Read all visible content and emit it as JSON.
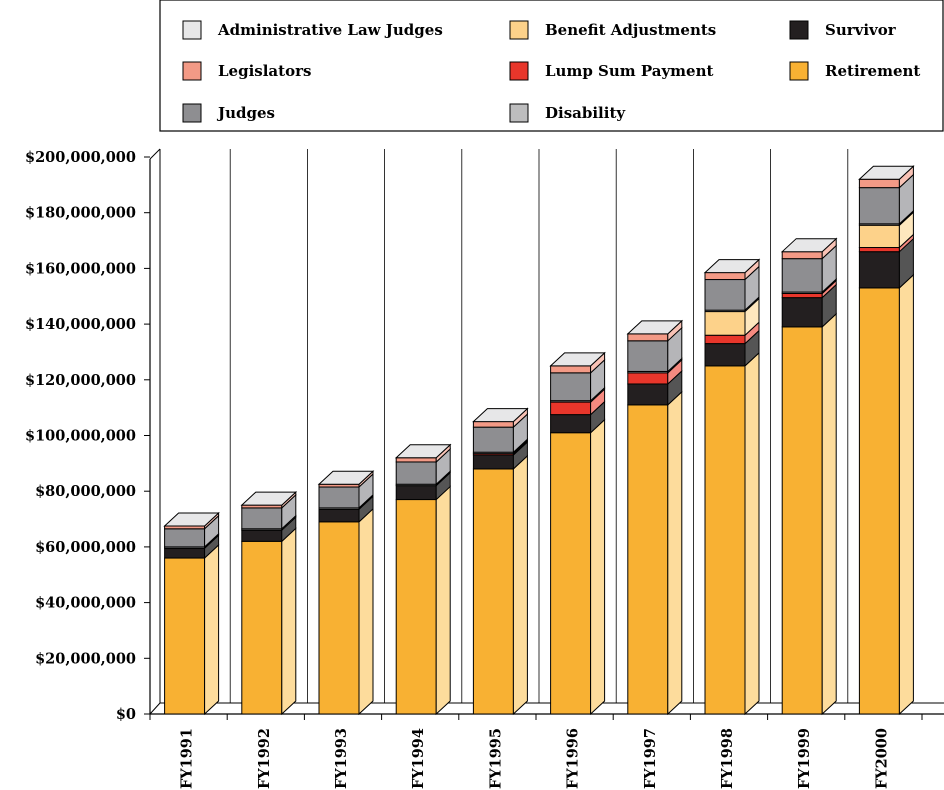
{
  "chart_data": {
    "type": "bar",
    "stacked": true,
    "three_d": true,
    "categories": [
      "FY1991",
      "FY1992",
      "FY1993",
      "FY1994",
      "FY1995",
      "FY1996",
      "FY1997",
      "FY1998",
      "FY1999",
      "FY2000"
    ],
    "ylim": [
      0,
      200000000
    ],
    "yticks": [
      0,
      20000000,
      40000000,
      60000000,
      80000000,
      100000000,
      120000000,
      140000000,
      160000000,
      180000000,
      200000000
    ],
    "ytick_labels": [
      "$0",
      "$20,000,000",
      "$40,000,000",
      "$60,000,000",
      "$80,000,000",
      "$100,000,000",
      "$120,000,000",
      "$140,000,000",
      "$160,000,000",
      "$180,000,000",
      "$200,000,000"
    ],
    "grid": "vertical",
    "legend_position": "top",
    "series": [
      {
        "name": "Retirement",
        "color": "#F8B133",
        "side_color": "#FDDC9C",
        "values": [
          56000000,
          62000000,
          69000000,
          77000000,
          88000000,
          101000000,
          111000000,
          125000000,
          139000000,
          153000000
        ]
      },
      {
        "name": "Survivor",
        "color": "#231F20",
        "side_color": "#555555",
        "values": [
          3500000,
          4000000,
          4500000,
          5000000,
          5000000,
          6500000,
          7500000,
          8000000,
          10500000,
          13000000
        ]
      },
      {
        "name": "Lump Sum Payment",
        "color": "#E8362B",
        "side_color": "#F58A80",
        "values": [
          0,
          0,
          0,
          0,
          500000,
          4500000,
          4000000,
          3000000,
          1500000,
          1500000
        ]
      },
      {
        "name": "Benefit Adjustments",
        "color": "#FDD28A",
        "side_color": "#FEE7BE",
        "values": [
          0,
          0,
          0,
          0,
          0,
          0,
          0,
          8500000,
          0,
          8000000
        ]
      },
      {
        "name": "Disability",
        "color": "#BDBDBE",
        "side_color": "#D8D8D9",
        "values": [
          500000,
          500000,
          500000,
          500000,
          500000,
          500000,
          500000,
          500000,
          500000,
          500000
        ]
      },
      {
        "name": "Judges",
        "color": "#8E8E91",
        "side_color": "#B5B5B8",
        "values": [
          6500000,
          7500000,
          7500000,
          8000000,
          9000000,
          10000000,
          11000000,
          11000000,
          12000000,
          13000000
        ]
      },
      {
        "name": "Legislators",
        "color": "#F39A86",
        "side_color": "#F8C2B5",
        "values": [
          1000000,
          1000000,
          1000000,
          1500000,
          2000000,
          2500000,
          2500000,
          2500000,
          2500000,
          3000000
        ]
      },
      {
        "name": "Administrative Law Judges",
        "color": "#E7E7E8",
        "side_color": "#F3F3F4",
        "values": [
          0,
          0,
          0,
          0,
          0,
          0,
          0,
          0,
          0,
          0
        ]
      }
    ],
    "legend_rows": [
      [
        "Administrative Law Judges",
        "Benefit Adjustments",
        "Survivor"
      ],
      [
        "Legislators",
        "Lump Sum Payment",
        "Retirement"
      ],
      [
        "Judges",
        "Disability"
      ]
    ]
  }
}
